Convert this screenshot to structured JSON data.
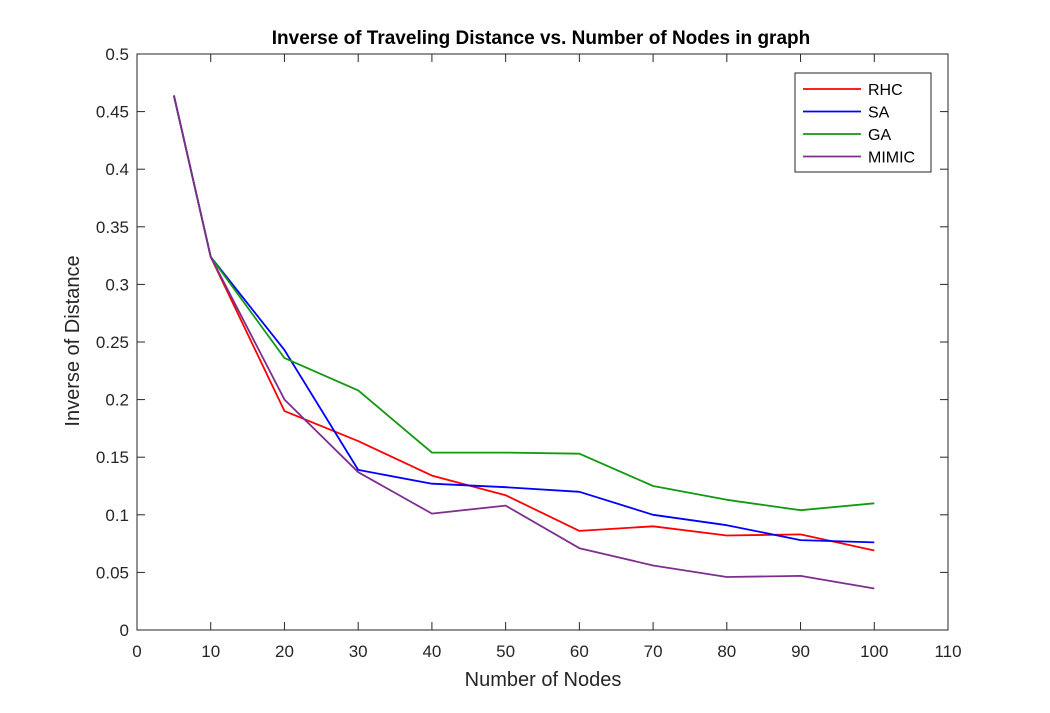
{
  "chart_data": {
    "type": "line",
    "title": "Inverse of Traveling Distance vs. Number of Nodes in graph",
    "xlabel": "Number of Nodes",
    "ylabel": "Inverse of Distance",
    "xlim": [
      0,
      110
    ],
    "ylim": [
      0,
      0.5
    ],
    "xticks": [
      0,
      10,
      20,
      30,
      40,
      50,
      60,
      70,
      80,
      90,
      100,
      110
    ],
    "yticks": [
      0,
      0.05,
      0.1,
      0.15,
      0.2,
      0.25,
      0.3,
      0.35,
      0.4,
      0.45,
      0.5
    ],
    "xtick_labels": [
      "0",
      "10",
      "20",
      "30",
      "40",
      "50",
      "60",
      "70",
      "80",
      "90",
      "100",
      "110"
    ],
    "ytick_labels": [
      "0",
      "0.05",
      "0.1",
      "0.15",
      "0.2",
      "0.25",
      "0.3",
      "0.35",
      "0.4",
      "0.45",
      "0.5"
    ],
    "grid": false,
    "legend_position": "top-right",
    "series": [
      {
        "name": "RHC",
        "color": "#ff0000",
        "x": [
          5,
          10,
          20,
          30,
          40,
          50,
          60,
          70,
          80,
          90,
          100
        ],
        "y": [
          0.464,
          0.324,
          0.19,
          0.164,
          0.134,
          0.117,
          0.086,
          0.09,
          0.082,
          0.083,
          0.069
        ]
      },
      {
        "name": "SA",
        "color": "#0000ff",
        "x": [
          5,
          10,
          20,
          30,
          40,
          50,
          60,
          70,
          80,
          90,
          100
        ],
        "y": [
          0.464,
          0.324,
          0.243,
          0.139,
          0.127,
          0.124,
          0.12,
          0.1,
          0.091,
          0.078,
          0.076
        ]
      },
      {
        "name": "GA",
        "color": "#119911",
        "x": [
          5,
          10,
          20,
          30,
          40,
          50,
          60,
          70,
          80,
          90,
          100
        ],
        "y": [
          0.464,
          0.324,
          0.236,
          0.208,
          0.154,
          0.154,
          0.153,
          0.125,
          0.113,
          0.104,
          0.11
        ]
      },
      {
        "name": "MIMIC",
        "color": "#7e2f8e",
        "x": [
          5,
          10,
          20,
          30,
          40,
          50,
          60,
          70,
          80,
          90,
          100
        ],
        "y": [
          0.464,
          0.324,
          0.2,
          0.137,
          0.101,
          0.108,
          0.071,
          0.056,
          0.046,
          0.047,
          0.036
        ]
      }
    ]
  }
}
